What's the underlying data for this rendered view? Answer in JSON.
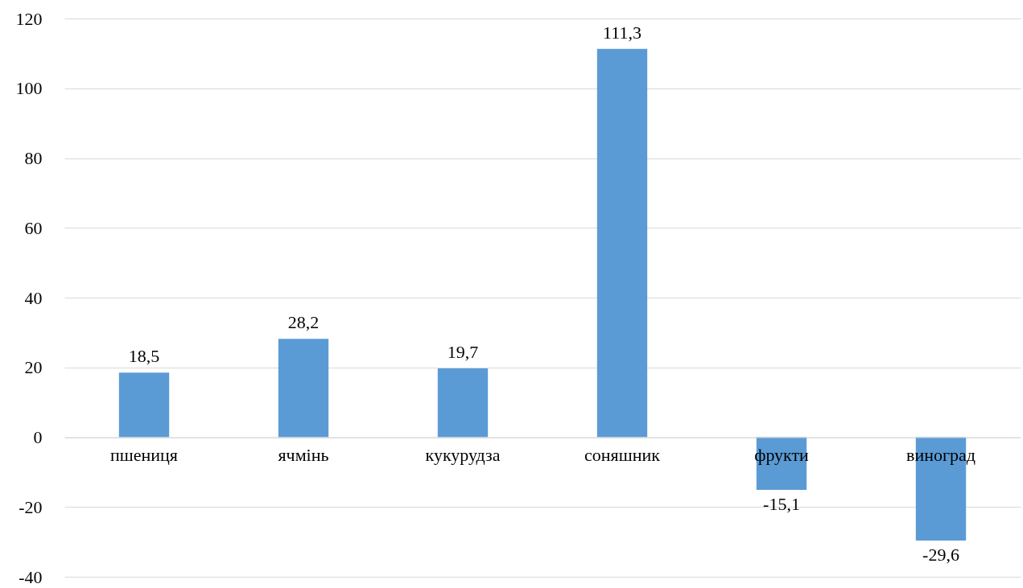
{
  "chart_data": {
    "type": "bar",
    "categories": [
      "пшениця",
      "ячмінь",
      "кукурудза",
      "соняшник",
      "фрукти",
      "виноград"
    ],
    "values": [
      18.5,
      28.2,
      19.7,
      111.3,
      -15.1,
      -29.6
    ],
    "value_labels": [
      "18,5",
      "28,2",
      "19,7",
      "111,3",
      "-15,1",
      "-29,6"
    ],
    "color": "#5b9bd5",
    "ylim": [
      -40,
      120
    ],
    "yticks": [
      -40,
      -20,
      0,
      20,
      40,
      60,
      80,
      100,
      120
    ],
    "grid": "y"
  }
}
